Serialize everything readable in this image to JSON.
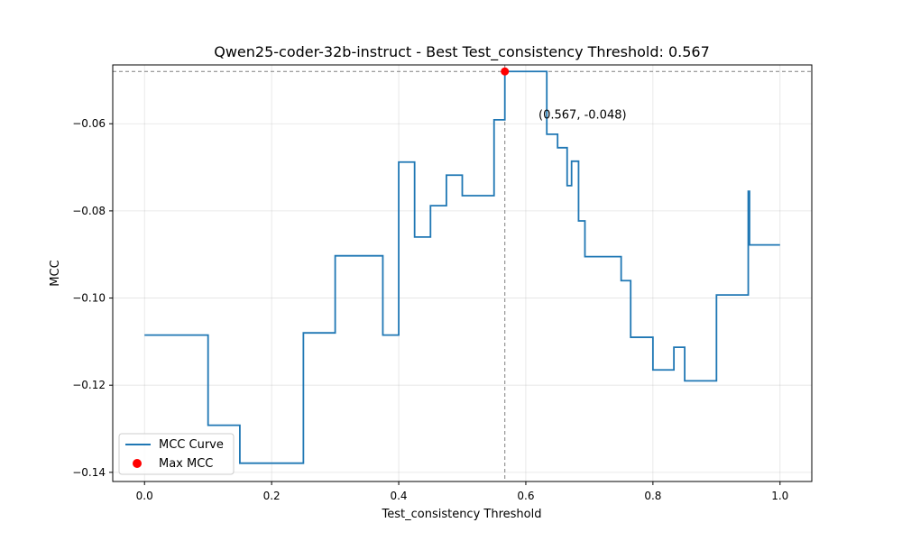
{
  "chart_data": {
    "type": "line",
    "title": "Qwen25-coder-32b-instruct - Best Test_consistency Threshold: 0.567",
    "xlabel": "Test_consistency Threshold",
    "ylabel": "MCC",
    "xlim": [
      -0.05,
      1.05
    ],
    "ylim": [
      -0.1421,
      -0.0465
    ],
    "x_ticks": [
      0.0,
      0.2,
      0.4,
      0.6,
      0.8,
      1.0
    ],
    "x_tick_labels": [
      "0.0",
      "0.2",
      "0.4",
      "0.6",
      "0.8",
      "1.0"
    ],
    "y_ticks": [
      -0.14,
      -0.12,
      -0.1,
      -0.08,
      -0.06
    ],
    "y_tick_labels": [
      "−0.14",
      "−0.12",
      "−0.10",
      "−0.08",
      "−0.06"
    ],
    "grid": true,
    "legend_position": "lower-left",
    "series": [
      {
        "name": "MCC Curve",
        "color": "#1f77b4",
        "step": true,
        "points": [
          [
            0.0,
            -0.1085
          ],
          [
            0.1,
            -0.1085
          ],
          [
            0.1,
            -0.1292
          ],
          [
            0.15,
            -0.1292
          ],
          [
            0.15,
            -0.1379
          ],
          [
            0.25,
            -0.1379
          ],
          [
            0.25,
            -0.108
          ],
          [
            0.3,
            -0.108
          ],
          [
            0.3,
            -0.0903
          ],
          [
            0.375,
            -0.0903
          ],
          [
            0.375,
            -0.1085
          ],
          [
            0.4,
            -0.1085
          ],
          [
            0.4,
            -0.0688
          ],
          [
            0.425,
            -0.0688
          ],
          [
            0.425,
            -0.086
          ],
          [
            0.45,
            -0.086
          ],
          [
            0.45,
            -0.0788
          ],
          [
            0.475,
            -0.0788
          ],
          [
            0.475,
            -0.0718
          ],
          [
            0.5,
            -0.0718
          ],
          [
            0.5,
            -0.0765
          ],
          [
            0.55,
            -0.0765
          ],
          [
            0.55,
            -0.0591
          ],
          [
            0.567,
            -0.0591
          ],
          [
            0.567,
            -0.048
          ],
          [
            0.633,
            -0.048
          ],
          [
            0.633,
            -0.0624
          ],
          [
            0.65,
            -0.0624
          ],
          [
            0.65,
            -0.0655
          ],
          [
            0.665,
            -0.0655
          ],
          [
            0.665,
            -0.0742
          ],
          [
            0.672,
            -0.0742
          ],
          [
            0.672,
            -0.0686
          ],
          [
            0.683,
            -0.0686
          ],
          [
            0.683,
            -0.0823
          ],
          [
            0.693,
            -0.0823
          ],
          [
            0.693,
            -0.0905
          ],
          [
            0.75,
            -0.0905
          ],
          [
            0.75,
            -0.096
          ],
          [
            0.765,
            -0.096
          ],
          [
            0.765,
            -0.109
          ],
          [
            0.8,
            -0.109
          ],
          [
            0.8,
            -0.1165
          ],
          [
            0.833,
            -0.1165
          ],
          [
            0.833,
            -0.1113
          ],
          [
            0.85,
            -0.1113
          ],
          [
            0.85,
            -0.119
          ],
          [
            0.9,
            -0.119
          ],
          [
            0.9,
            -0.0993
          ],
          [
            0.95,
            -0.0993
          ],
          [
            0.95,
            -0.0755
          ],
          [
            0.952,
            -0.0755
          ],
          [
            0.952,
            -0.0878
          ],
          [
            1.0,
            -0.0878
          ]
        ]
      },
      {
        "name": "Max MCC",
        "color": "#ff0000",
        "marker": "circle",
        "points": [
          [
            0.567,
            -0.048
          ]
        ]
      }
    ],
    "reference_lines": {
      "vertical_x": 0.567,
      "horizontal_y": -0.048,
      "color": "#808080",
      "style": "dashed"
    },
    "annotation": {
      "text": "(0.567, -0.048)",
      "x": 0.62,
      "y": -0.058
    }
  }
}
